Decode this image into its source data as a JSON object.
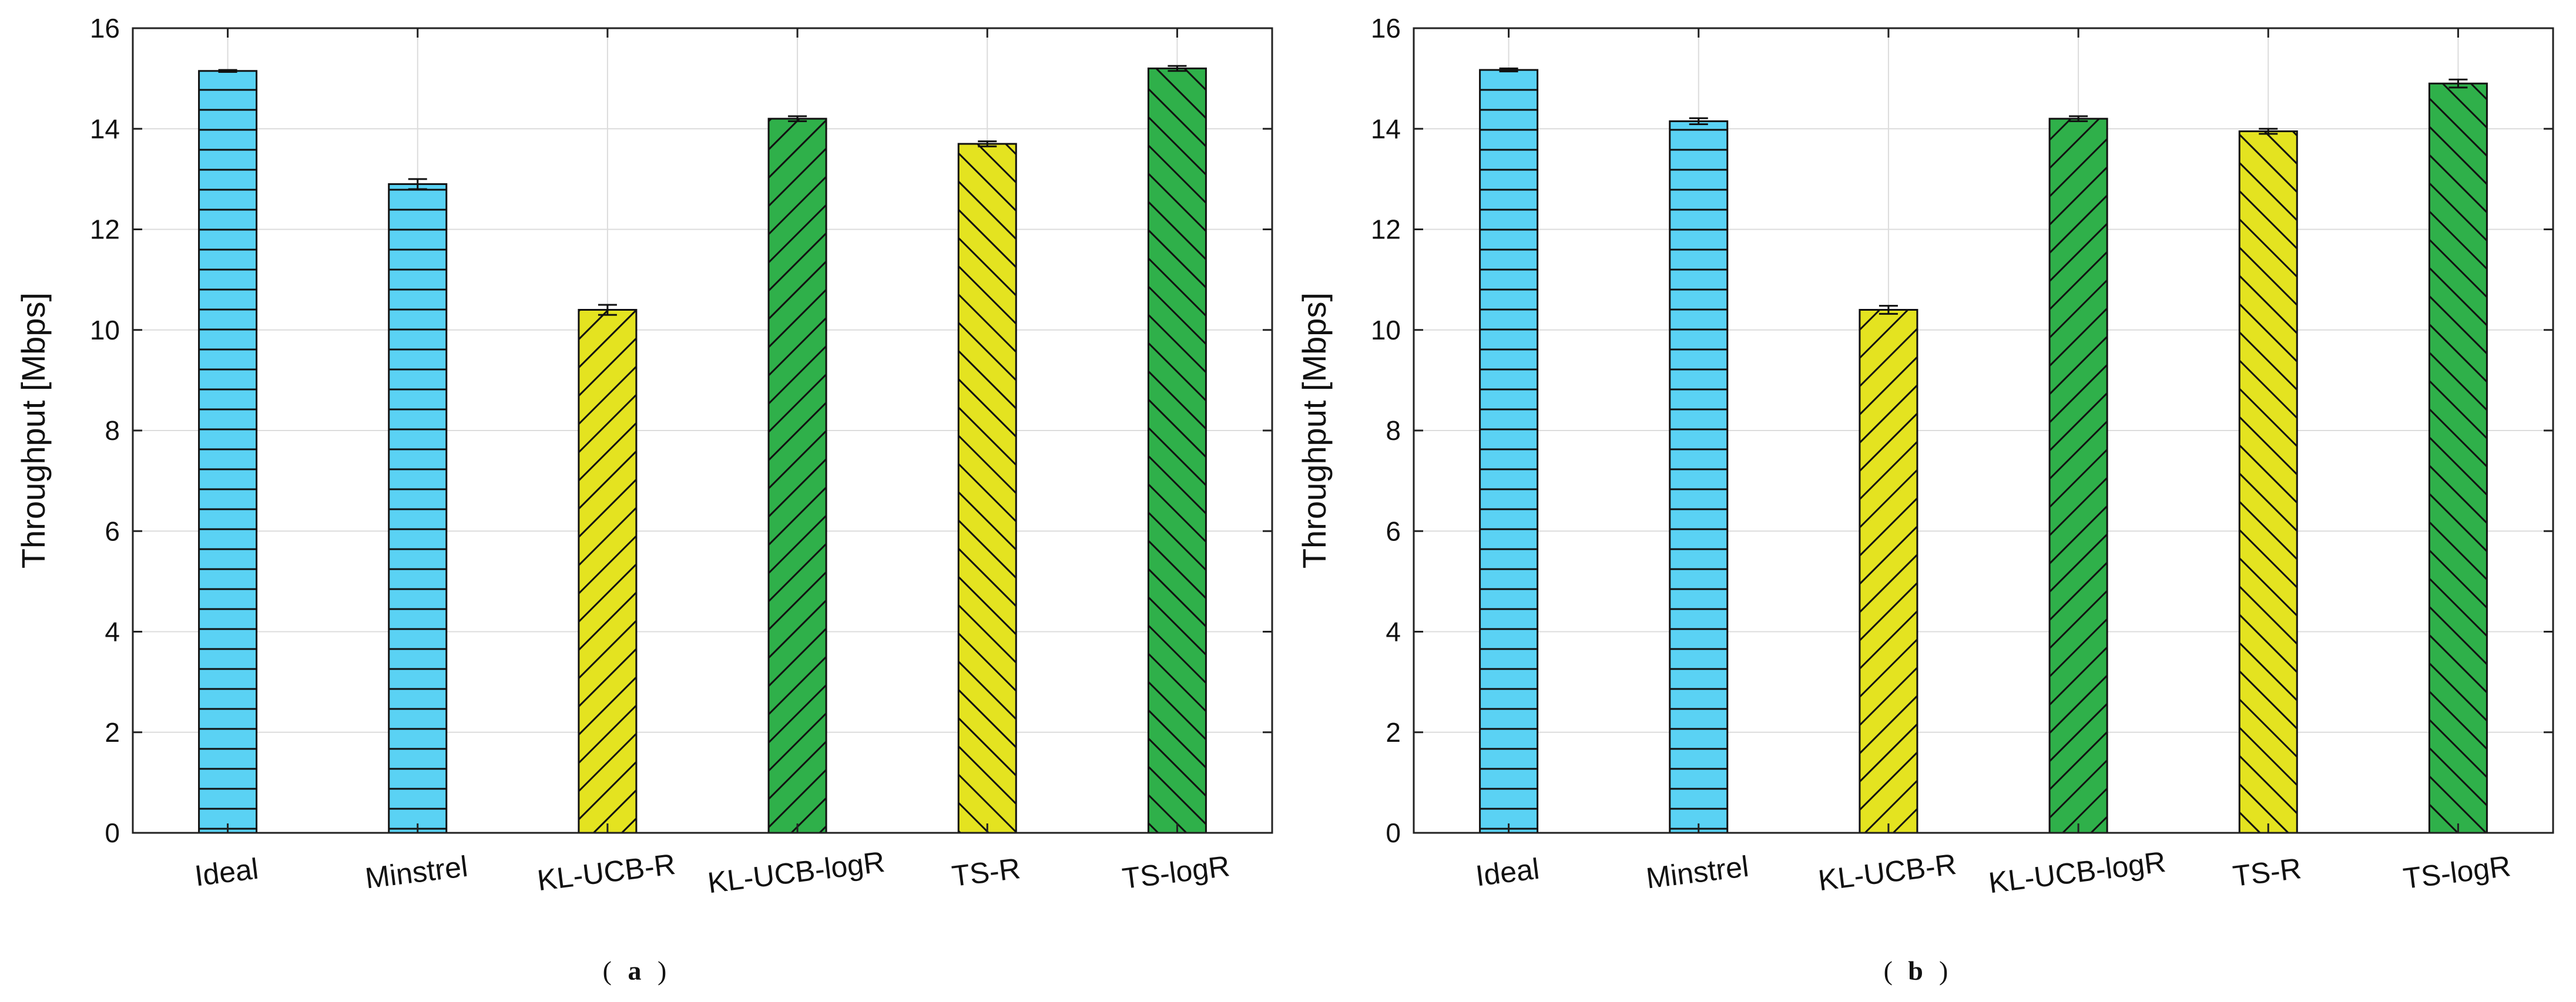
{
  "chart_data": [
    {
      "type": "bar",
      "panel_label": "a",
      "categories": [
        "Ideal",
        "Minstrel",
        "KL-UCB-R",
        "KL-UCB-logR",
        "TS-R",
        "TS-logR"
      ],
      "values": [
        15.15,
        12.9,
        10.4,
        14.2,
        13.7,
        15.2
      ],
      "errors": [
        0.02,
        0.1,
        0.1,
        0.05,
        0.05,
        0.05
      ],
      "bar_colors": [
        "#5ad2f4",
        "#5ad2f4",
        "#e4e320",
        "#2fb04a",
        "#e4e320",
        "#2fb04a"
      ],
      "patterns": [
        "horizontal",
        "horizontal",
        "diag-up",
        "diag-up",
        "diag-down",
        "diag-down"
      ],
      "title": "",
      "xlabel": "",
      "ylabel": "Throughput [Mbps]",
      "ylim": [
        0,
        16
      ],
      "yticks": [
        0,
        2,
        4,
        6,
        8,
        10,
        12,
        14,
        16
      ],
      "grid": true
    },
    {
      "type": "bar",
      "panel_label": "b",
      "categories": [
        "Ideal",
        "Minstrel",
        "KL-UCB-R",
        "KL-UCB-logR",
        "TS-R",
        "TS-logR"
      ],
      "values": [
        15.17,
        14.15,
        10.4,
        14.2,
        13.95,
        14.9
      ],
      "errors": [
        0.03,
        0.06,
        0.08,
        0.05,
        0.05,
        0.08
      ],
      "bar_colors": [
        "#5ad2f4",
        "#5ad2f4",
        "#e4e320",
        "#2fb04a",
        "#e4e320",
        "#2fb04a"
      ],
      "patterns": [
        "horizontal",
        "horizontal",
        "diag-up",
        "diag-up",
        "diag-down",
        "diag-down"
      ],
      "title": "",
      "xlabel": "",
      "ylabel": "Throughput [Mbps]",
      "ylim": [
        0,
        16
      ],
      "yticks": [
        0,
        2,
        4,
        6,
        8,
        10,
        12,
        14,
        16
      ],
      "grid": true
    }
  ],
  "captions": {
    "open": "(",
    "close": ")"
  }
}
